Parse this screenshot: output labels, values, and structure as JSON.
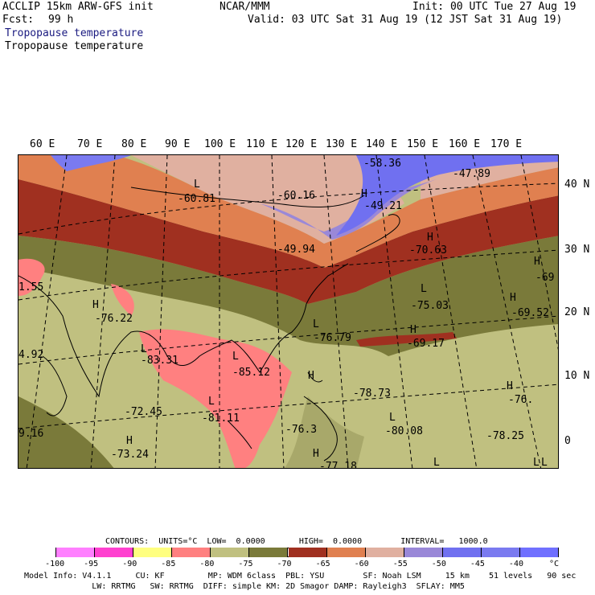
{
  "header": {
    "model": "ACCLIP 15km ARW-GFS init",
    "org": "NCAR/MMM",
    "init": "Init: 00 UTC Tue 27 Aug 19",
    "fcst_label": "Fcst:",
    "fcst_value": "99 h",
    "valid": "Valid: 03 UTC Sat 31 Aug 19 (12 JST Sat 31 Aug 19)",
    "field1": "Tropopause temperature",
    "field2": "Tropopause temperature"
  },
  "axes": {
    "lon_labels": [
      "60 E",
      "70 E",
      "80 E",
      "90 E",
      "100 E",
      "110 E",
      "120 E",
      "130 E",
      "140 E",
      "150 E",
      "160 E",
      "170 E"
    ],
    "lat_labels": [
      "40 N",
      "30 N",
      "20 N",
      "10 N",
      "0"
    ]
  },
  "map_labels": [
    {
      "text": "-58.36"
    },
    {
      "text": "-47.89"
    },
    {
      "text": "L"
    },
    {
      "text": "-60.81"
    },
    {
      "text": "-60.16"
    },
    {
      "text": "H"
    },
    {
      "text": "-49.21"
    },
    {
      "text": "H"
    },
    {
      "text": "-49.94"
    },
    {
      "text": "-70.63"
    },
    {
      "text": "H"
    },
    {
      "text": "-69"
    },
    {
      "text": "1.55"
    },
    {
      "text": "H"
    },
    {
      "text": "-76.22"
    },
    {
      "text": "L"
    },
    {
      "text": "-75.03"
    },
    {
      "text": "H"
    },
    {
      "text": "-69.52"
    },
    {
      "text": "L"
    },
    {
      "text": "-76.79"
    },
    {
      "text": "H"
    },
    {
      "text": "-69.17"
    },
    {
      "text": "4.92"
    },
    {
      "text": "L"
    },
    {
      "text": "-83.31"
    },
    {
      "text": "L"
    },
    {
      "text": "-85.12"
    },
    {
      "text": "H"
    },
    {
      "text": "-78.73"
    },
    {
      "text": "H"
    },
    {
      "text": "-76."
    },
    {
      "text": "L"
    },
    {
      "text": "-72.45"
    },
    {
      "text": "-81.11"
    },
    {
      "text": "L"
    },
    {
      "text": "-80.08"
    },
    {
      "text": "9.16"
    },
    {
      "text": "H"
    },
    {
      "text": "-76.3"
    },
    {
      "text": "-78.25"
    },
    {
      "text": "L"
    },
    {
      "text": "-73.24"
    },
    {
      "text": "H"
    },
    {
      "text": "-77.18"
    },
    {
      "text": "L"
    },
    {
      "text": "L"
    }
  ],
  "contours_line": "CONTOURS:  UNITS=°C  LOW=  0.0000       HIGH=  0.0000        INTERVAL=   1000.0",
  "colorbar": {
    "colors": [
      "#ffffff",
      "#ff80ff",
      "#ff40d0",
      "#ffff80",
      "#ff8080",
      "#c0c080",
      "#7a7a3a",
      "#a03020",
      "#e08050",
      "#e0b0a0",
      "#9a88d8",
      "#7070f0",
      "#7a7af0",
      "#7070ff"
    ],
    "labels": [
      "-100",
      "-95",
      "-90",
      "-85",
      "-80",
      "-75",
      "-70",
      "-65",
      "-60",
      "-55",
      "-50",
      "-45",
      "-40",
      "°C"
    ]
  },
  "model_info_1": "Model Info: V4.1.1     CU: KF         MP: WDM 6class  PBL: YSU        SF: Noah LSM     15 km    51 levels   90 sec",
  "model_info_2": "              LW: RRTMG   SW: RRTMG  DIFF: simple KM: 2D Smagor DAMP: Rayleigh3  SFLAY: MM5"
}
